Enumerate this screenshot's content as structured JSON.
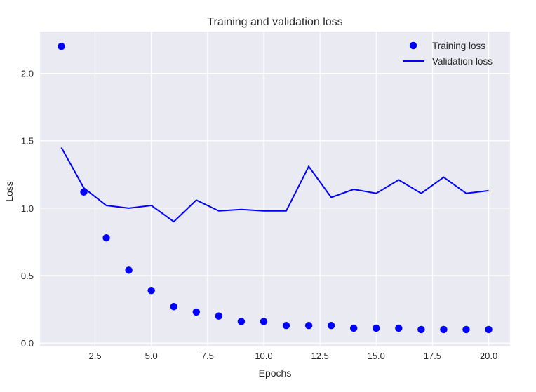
{
  "chart_data": {
    "type": "scatter+line",
    "title": "Training and validation loss",
    "xlabel": "Epochs",
    "ylabel": "Loss",
    "xlim": [
      0.05,
      20.95
    ],
    "ylim": [
      -0.02,
      2.31
    ],
    "xticks": [
      2.5,
      5.0,
      7.5,
      10.0,
      12.5,
      15.0,
      17.5,
      20.0
    ],
    "xtick_labels": [
      "2.5",
      "5.0",
      "7.5",
      "10.0",
      "12.5",
      "15.0",
      "17.5",
      "20.0"
    ],
    "yticks": [
      0.0,
      0.5,
      1.0,
      1.5,
      2.0
    ],
    "ytick_labels": [
      "0.0",
      "0.5",
      "1.0",
      "1.5",
      "2.0"
    ],
    "grid": true,
    "legend_position": "top-right",
    "x": [
      1,
      2,
      3,
      4,
      5,
      6,
      7,
      8,
      9,
      10,
      11,
      12,
      13,
      14,
      15,
      16,
      17,
      18,
      19,
      20
    ],
    "series": [
      {
        "name": "Training loss",
        "style": "dots",
        "color": "#0000ff",
        "values": [
          2.2,
          1.12,
          0.78,
          0.54,
          0.39,
          0.27,
          0.23,
          0.2,
          0.16,
          0.16,
          0.13,
          0.13,
          0.13,
          0.11,
          0.11,
          0.11,
          0.1,
          0.1,
          0.1,
          0.1
        ]
      },
      {
        "name": "Validation loss",
        "style": "line",
        "color": "#0000ff",
        "values": [
          1.45,
          1.15,
          1.02,
          1.0,
          1.02,
          0.9,
          1.06,
          0.98,
          0.99,
          0.98,
          0.98,
          1.31,
          1.08,
          1.14,
          1.11,
          1.21,
          1.11,
          1.23,
          1.11,
          1.13
        ]
      }
    ]
  }
}
